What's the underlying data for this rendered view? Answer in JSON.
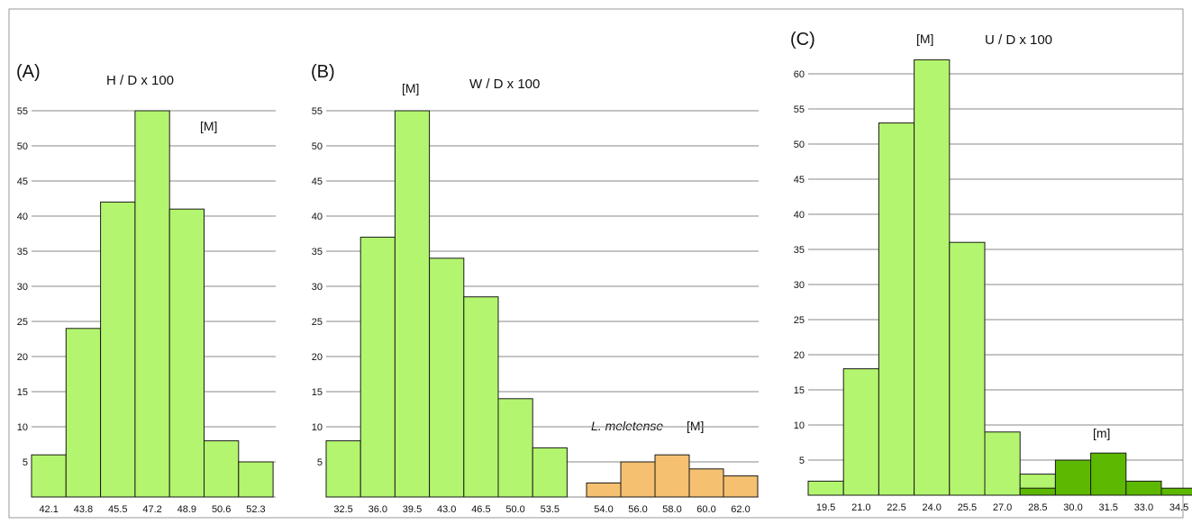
{
  "colors": {
    "light_green": "#b3f56e",
    "dark_green": "#5cb800",
    "orange": "#f5c070",
    "grid": "#8a8a8a",
    "bar_stroke": "#1a1a1a"
  },
  "chart_data": [
    {
      "type": "bar",
      "panel_label": "(A)",
      "title": "H / D x 100",
      "annotation": "[M]",
      "categories": [
        "42.1",
        "43.8",
        "45.5",
        "47.2",
        "48.9",
        "50.6",
        "52.3"
      ],
      "series": [
        {
          "values": [
            6,
            24,
            42,
            55,
            41,
            8,
            5
          ]
        }
      ],
      "yticks": [
        5,
        10,
        15,
        20,
        25,
        30,
        35,
        40,
        45,
        50,
        55
      ],
      "ylim": [
        0,
        58
      ],
      "grid": true
    },
    {
      "type": "bar",
      "panel_label": "(B)",
      "title": "W / D x 100",
      "annotation": "[M]",
      "categories": [
        "32.5",
        "36.0",
        "39.5",
        "43.0",
        "46.5",
        "50.0",
        "53.5"
      ],
      "series": [
        {
          "values": [
            8,
            37,
            55,
            34,
            28.5,
            14,
            7
          ]
        }
      ],
      "inset": {
        "label": "L. meletense",
        "annotation": "[M]",
        "categories": [
          "54.0",
          "56.0",
          "58.0",
          "60.0",
          "62.0"
        ],
        "values": [
          2,
          5,
          6,
          4,
          3
        ]
      },
      "yticks": [
        5,
        10,
        15,
        20,
        25,
        30,
        35,
        40,
        45,
        50,
        55
      ],
      "ylim": [
        0,
        58
      ],
      "grid": true
    },
    {
      "type": "bar",
      "panel_label": "(C)",
      "title": "U / D x 100",
      "annotation": "[M]",
      "annotation_minor": "[m]",
      "categories": [
        "19.5",
        "21.0",
        "22.5",
        "24.0",
        "25.5",
        "27.0",
        "28.5",
        "30.0",
        "31.5",
        "33.0",
        "34.5"
      ],
      "series": [
        {
          "name": "[M]",
          "values": [
            2,
            18,
            53,
            62,
            36,
            9,
            3,
            null,
            null,
            null,
            null
          ]
        },
        {
          "name": "[m]",
          "values": [
            null,
            null,
            null,
            null,
            null,
            null,
            1,
            5,
            6,
            2,
            1
          ]
        }
      ],
      "yticks": [
        5,
        10,
        15,
        20,
        25,
        30,
        35,
        40,
        45,
        50,
        55,
        60
      ],
      "ylim": [
        0,
        63
      ],
      "grid": true
    }
  ]
}
